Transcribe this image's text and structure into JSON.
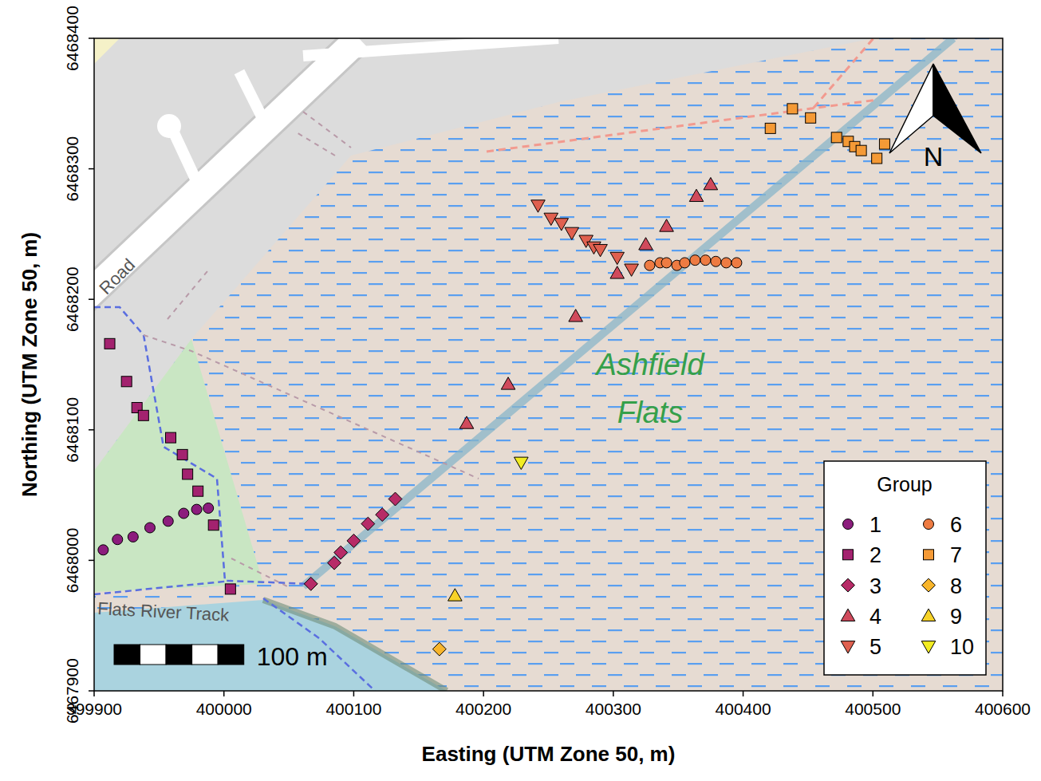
{
  "chart_data": {
    "type": "scatter",
    "x_label": "Easting (UTM Zone 50, m)",
    "y_label": "Northing (UTM Zone 50, m)",
    "xlim": [
      399900,
      400600
    ],
    "ylim": [
      6467900,
      6468400
    ],
    "xticks": [
      399900,
      400000,
      400100,
      400200,
      400300,
      400400,
      400500,
      400600
    ],
    "yticks": [
      6467900,
      6468000,
      6468100,
      6468200,
      6468300,
      6468400
    ],
    "legend": "bottom-right",
    "legend_title": "Group",
    "annotations": [
      "Ashfield",
      "Flats",
      "Road",
      "Flats River Track",
      "N"
    ],
    "scale_bar": {
      "length": 100,
      "label": "100 m"
    },
    "series": [
      {
        "name": "1",
        "color": "#8c1d7d",
        "marker": "circle",
        "x": [
          399907,
          399918,
          399930,
          399943,
          399957,
          399969,
          399979,
          399988
        ],
        "values": [
          6468008,
          6468016,
          6468018,
          6468025,
          6468030,
          6468036,
          6468039,
          6468040
        ]
      },
      {
        "name": "2",
        "color": "#a3226f",
        "marker": "square",
        "x": [
          399912,
          399925,
          399933,
          399938,
          399959,
          399968,
          399972,
          399980,
          399992,
          400005
        ],
        "values": [
          6468166,
          6468137,
          6468117,
          6468111,
          6468094,
          6468081,
          6468066,
          6468053,
          6468027,
          6467978
        ]
      },
      {
        "name": "3",
        "color": "#b72b67",
        "marker": "diamond",
        "x": [
          400067,
          400085,
          400090,
          400100,
          400111,
          400122,
          400132
        ],
        "values": [
          6467982,
          6467998,
          6468006,
          6468015,
          6468028,
          6468035,
          6468047
        ]
      },
      {
        "name": "4",
        "color": "#d04a5c",
        "marker": "triangle-up",
        "x": [
          400187,
          400219,
          400271,
          400303,
          400325,
          400341,
          400364,
          400375
        ],
        "values": [
          6468105,
          6468135,
          6468187,
          6468220,
          6468242,
          6468256,
          6468279,
          6468288
        ]
      },
      {
        "name": "5",
        "color": "#e0604f",
        "marker": "triangle-down",
        "x": [
          400242,
          400252,
          400260,
          400268,
          400279,
          400285,
          400290,
          400303,
          400314
        ],
        "values": [
          6468272,
          6468262,
          6468258,
          6468251,
          6468245,
          6468240,
          6468238,
          6468232,
          6468223
        ]
      },
      {
        "name": "6",
        "color": "#ee7b42",
        "marker": "circle",
        "x": [
          400328,
          400336,
          400341,
          400349,
          400355,
          400363,
          400371,
          400379,
          400387,
          400395
        ],
        "values": [
          6468226,
          6468228,
          6468228,
          6468226,
          6468228,
          6468230,
          6468230,
          6468229,
          6468228,
          6468228
        ]
      },
      {
        "name": "7",
        "color": "#f59a36",
        "marker": "square",
        "x": [
          400421,
          400438,
          400452,
          400472,
          400481,
          400486,
          400491,
          400503,
          400509
        ],
        "values": [
          6468331,
          6468346,
          6468339,
          6468324,
          6468321,
          6468317,
          6468314,
          6468308,
          6468319
        ]
      },
      {
        "name": "8",
        "color": "#f8b52b",
        "marker": "diamond",
        "x": [
          400166
        ],
        "values": [
          6467932
        ]
      },
      {
        "name": "9",
        "color": "#f7d227",
        "marker": "triangle-up",
        "x": [
          400178
        ],
        "values": [
          6467973
        ]
      },
      {
        "name": "10",
        "color": "#f2ec22",
        "marker": "triangle-down",
        "x": [
          400229
        ],
        "values": [
          6468075
        ]
      }
    ]
  }
}
